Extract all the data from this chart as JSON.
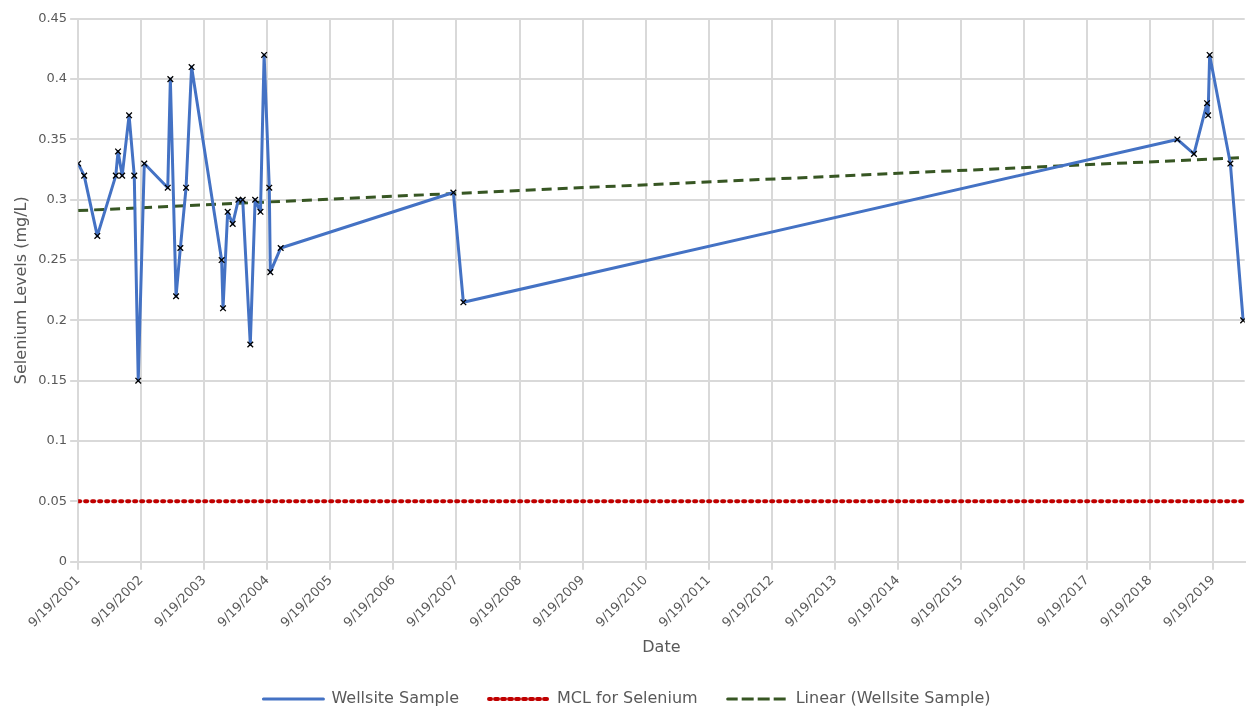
{
  "chart_data": {
    "type": "line",
    "xlabel": "Date",
    "ylabel": "Selenium Levels (mg/L)",
    "xlim": [
      "2001-09-19",
      "2020-03-19"
    ],
    "xticks": [
      {
        "value": "2001-09-19",
        "label": "9/19/2001"
      },
      {
        "value": "2002-09-19",
        "label": "9/19/2002"
      },
      {
        "value": "2003-09-19",
        "label": "9/19/2003"
      },
      {
        "value": "2004-09-19",
        "label": "9/19/2004"
      },
      {
        "value": "2005-09-19",
        "label": "9/19/2005"
      },
      {
        "value": "2006-09-19",
        "label": "9/19/2006"
      },
      {
        "value": "2007-09-19",
        "label": "9/19/2007"
      },
      {
        "value": "2008-09-19",
        "label": "9/19/2008"
      },
      {
        "value": "2009-09-19",
        "label": "9/19/2009"
      },
      {
        "value": "2010-09-19",
        "label": "9/19/2010"
      },
      {
        "value": "2011-09-19",
        "label": "9/19/2011"
      },
      {
        "value": "2012-09-19",
        "label": "9/19/2012"
      },
      {
        "value": "2013-09-19",
        "label": "9/19/2013"
      },
      {
        "value": "2014-09-19",
        "label": "9/19/2014"
      },
      {
        "value": "2015-09-19",
        "label": "9/19/2015"
      },
      {
        "value": "2016-09-19",
        "label": "9/19/2016"
      },
      {
        "value": "2017-09-19",
        "label": "9/19/2017"
      },
      {
        "value": "2018-09-19",
        "label": "9/19/2018"
      },
      {
        "value": "2019-09-19",
        "label": "9/19/2019"
      }
    ],
    "ylim": [
      0,
      0.45
    ],
    "yticks": [
      0,
      0.05,
      0.1,
      0.15,
      0.2,
      0.25,
      0.3,
      0.35,
      0.4,
      0.45
    ],
    "grid": true,
    "legend": "bottom",
    "series": [
      {
        "name": "Wellsite Sample",
        "color": "#4472c4",
        "marker": "cross",
        "line_style": "solid",
        "x": [
          "2001-09-19",
          "2001-10-24",
          "2002-01-08",
          "2002-04-25",
          "2002-05-08",
          "2002-06-01",
          "2002-07-11",
          "2002-08-10",
          "2002-09-02",
          "2002-10-07",
          "2003-02-20",
          "2003-03-07",
          "2003-04-09",
          "2003-05-04",
          "2003-06-06",
          "2003-07-08",
          "2003-12-29",
          "2004-01-06",
          "2004-02-02",
          "2004-03-02",
          "2004-04-04",
          "2004-04-29",
          "2004-06-12",
          "2004-07-10",
          "2004-08-10",
          "2004-08-31",
          "2004-09-30",
          "2004-10-06",
          "2004-12-05",
          "2007-09-01",
          "2007-10-29",
          "2019-02-23",
          "2019-05-30",
          "2019-08-14",
          "2019-08-20",
          "2019-08-29",
          "2019-12-27",
          "2020-03-10"
        ],
        "values": [
          0.33,
          0.32,
          0.27,
          0.32,
          0.34,
          0.32,
          0.37,
          0.32,
          0.15,
          0.33,
          0.31,
          0.4,
          0.22,
          0.26,
          0.31,
          0.41,
          0.25,
          0.21,
          0.29,
          0.28,
          0.3,
          0.3,
          0.18,
          0.3,
          0.29,
          0.42,
          0.31,
          0.24,
          0.26,
          0.306,
          0.215,
          0.35,
          0.338,
          0.38,
          0.37,
          0.42,
          0.33,
          0.2
        ]
      },
      {
        "name": "MCL for Selenium",
        "color": "#c00000",
        "marker": "none",
        "line_style": "dotted",
        "x": [
          "2001-09-19",
          "2020-03-19"
        ],
        "values": [
          0.05,
          0.05
        ]
      },
      {
        "name": "Linear (Wellsite Sample)",
        "color": "#375623",
        "marker": "none",
        "line_style": "dashed",
        "x": [
          "2001-09-19",
          "2020-03-19"
        ],
        "values": [
          0.291,
          0.335
        ]
      }
    ]
  }
}
